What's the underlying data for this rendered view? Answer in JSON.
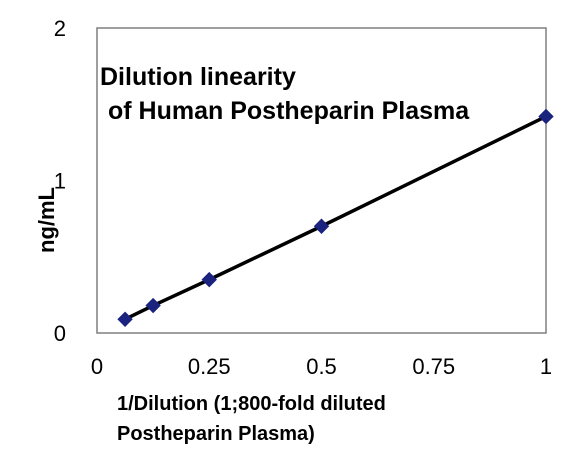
{
  "chart_data": {
    "type": "line",
    "title_lines": [
      "Dilution linearity",
      "of Human Postheparin Plasma"
    ],
    "xlabel_lines": [
      "1/Dilution  (1;800-fold diluted",
      "Postheparin Plasma)"
    ],
    "ylabel": "ng/mL",
    "xlim": [
      0,
      1
    ],
    "ylim": [
      0,
      2
    ],
    "x_ticks": [
      {
        "value": 0,
        "label": "0"
      },
      {
        "value": 0.25,
        "label": "0.25"
      },
      {
        "value": 0.5,
        "label": "0.5"
      },
      {
        "value": 0.75,
        "label": "0.75"
      },
      {
        "value": 1,
        "label": "1"
      }
    ],
    "y_ticks": [
      {
        "value": 0,
        "label": "0"
      },
      {
        "value": 1,
        "label": "1"
      },
      {
        "value": 2,
        "label": "2"
      }
    ],
    "grid": false,
    "marker": "diamond",
    "colors": {
      "marker": "#1a237e",
      "line": "#000000",
      "frame": "#7f7f7f"
    },
    "series": [
      {
        "x": [
          0.0625,
          0.125,
          0.25,
          0.5,
          1.0
        ],
        "y": [
          0.09,
          0.18,
          0.35,
          0.7,
          1.42
        ]
      }
    ]
  }
}
